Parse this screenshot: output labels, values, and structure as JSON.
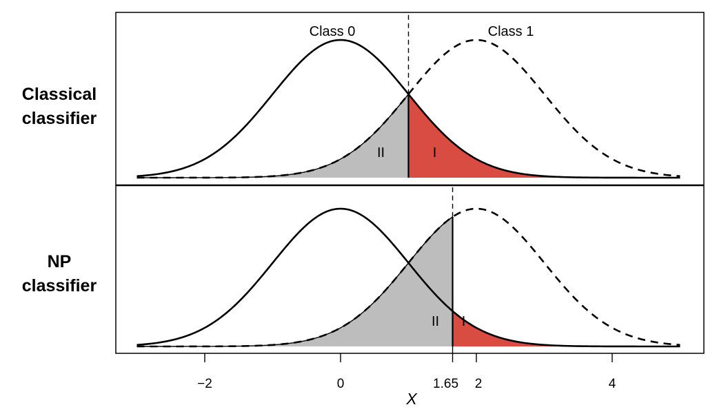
{
  "chart_data": {
    "type": "area",
    "xlabel": "X",
    "x_ticks": [
      "−2",
      "0",
      "1.65",
      "2",
      "4"
    ],
    "x_tick_values": [
      -2,
      0,
      1.65,
      2,
      4
    ],
    "xlim": [
      -3,
      5
    ],
    "distributions": [
      {
        "name": "Class 0",
        "mean": 0,
        "sd": 1,
        "line_style": "solid"
      },
      {
        "name": "Class 1",
        "mean": 2,
        "sd": 1,
        "line_style": "dashed"
      }
    ],
    "panels": [
      {
        "row_label_lines": [
          "Classical",
          "classifier"
        ],
        "threshold": 1,
        "curve_labels": [
          "Class 0",
          "Class 1"
        ],
        "regions": [
          {
            "label": "II",
            "description": "Class 1 density left of threshold",
            "color": "#bdbdbd"
          },
          {
            "label": "I",
            "description": "Class 0 density right of threshold",
            "color": "#d94c41"
          }
        ]
      },
      {
        "row_label_lines": [
          "NP",
          "classifier"
        ],
        "threshold": 1.65,
        "curve_labels": [],
        "regions": [
          {
            "label": "II",
            "description": "Class 1 density left of threshold",
            "color": "#bdbdbd"
          },
          {
            "label": "I",
            "description": "Class 0 density right of threshold",
            "color": "#d94c41"
          }
        ]
      }
    ]
  },
  "colors": {
    "type_I": "#d94c41",
    "type_II": "#bdbdbd",
    "line": "#000000"
  }
}
